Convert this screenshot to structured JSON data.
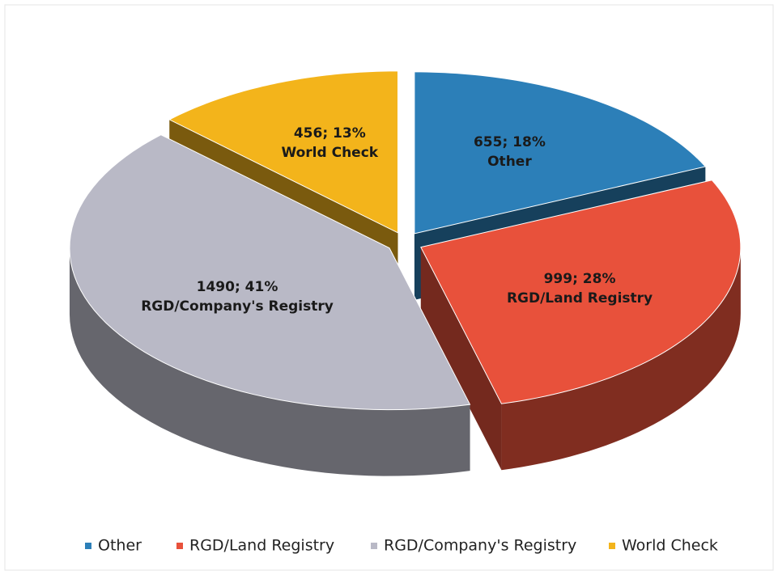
{
  "chart_data": {
    "type": "pie3d",
    "categories": [
      "Other",
      "RGD/Land Registry",
      "RGD/Company's Registry",
      "World Check"
    ],
    "values": [
      655,
      999,
      1490,
      456
    ],
    "value_labels": [
      "655; 18%",
      "999; 28%",
      "1490; 41%",
      "456; 13%"
    ],
    "colors": [
      "#2c7fb8",
      "#e8513b",
      "#b9b9c6",
      "#f3b41b"
    ],
    "legend": "bottom"
  }
}
